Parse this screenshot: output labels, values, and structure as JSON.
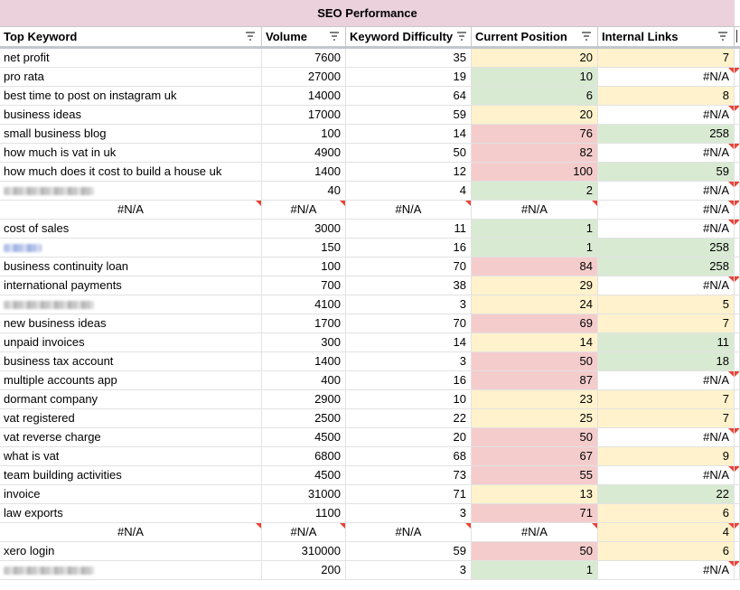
{
  "title": "SEO Performance",
  "headers": [
    "Top Keyword",
    "Volume",
    "Keyword Difficulty",
    "Current Position",
    "Internal Links"
  ],
  "status_colors": {
    "red": "#f4cccc",
    "yellow": "#fff2cc",
    "green": "#d9ead3"
  },
  "rows": [
    {
      "keyword": "net profit",
      "volume": "7600",
      "difficulty": "35",
      "position": "20",
      "links": "7",
      "pos_color": "yellow",
      "links_color": "yellow"
    },
    {
      "keyword": "pro rata",
      "volume": "27000",
      "difficulty": "19",
      "position": "10",
      "links": "#N/A",
      "pos_color": "green",
      "links_color": "white"
    },
    {
      "keyword": "best time to post on instagram uk",
      "volume": "14000",
      "difficulty": "64",
      "position": "6",
      "links": "8",
      "pos_color": "green",
      "links_color": "yellow"
    },
    {
      "keyword": "business ideas",
      "volume": "17000",
      "difficulty": "59",
      "position": "20",
      "links": "#N/A",
      "pos_color": "yellow",
      "links_color": "white"
    },
    {
      "keyword": "small business blog",
      "volume": "100",
      "difficulty": "14",
      "position": "76",
      "links": "258",
      "pos_color": "red",
      "links_color": "green"
    },
    {
      "keyword": "how much is vat in uk",
      "volume": "4900",
      "difficulty": "50",
      "position": "82",
      "links": "#N/A",
      "pos_color": "red",
      "links_color": "white"
    },
    {
      "keyword": "how much does it cost to build a house uk",
      "volume": "1400",
      "difficulty": "12",
      "position": "100",
      "links": "59",
      "pos_color": "red",
      "links_color": "green"
    },
    {
      "keyword": "",
      "redacted": "gray",
      "volume": "40",
      "difficulty": "4",
      "position": "2",
      "links": "#N/A",
      "pos_color": "green",
      "links_color": "white"
    },
    {
      "keyword": "#N/A",
      "na_row": true,
      "volume": "#N/A",
      "difficulty": "#N/A",
      "position": "#N/A",
      "links": "#N/A",
      "pos_color": "white",
      "links_color": "white"
    },
    {
      "keyword": "cost of sales",
      "volume": "3000",
      "difficulty": "11",
      "position": "1",
      "links": "#N/A",
      "pos_color": "green",
      "links_color": "white"
    },
    {
      "keyword": "",
      "redacted": "blue",
      "volume": "150",
      "difficulty": "16",
      "position": "1",
      "links": "258",
      "pos_color": "green",
      "links_color": "green"
    },
    {
      "keyword": "business continuity loan",
      "volume": "100",
      "difficulty": "70",
      "position": "84",
      "links": "258",
      "pos_color": "red",
      "links_color": "green"
    },
    {
      "keyword": "international payments",
      "volume": "700",
      "difficulty": "38",
      "position": "29",
      "links": "#N/A",
      "pos_color": "yellow",
      "links_color": "white"
    },
    {
      "keyword": "",
      "redacted": "gray",
      "volume": "4100",
      "difficulty": "3",
      "position": "24",
      "links": "5",
      "pos_color": "yellow",
      "links_color": "yellow"
    },
    {
      "keyword": "new business ideas",
      "volume": "1700",
      "difficulty": "70",
      "position": "69",
      "links": "7",
      "pos_color": "red",
      "links_color": "yellow"
    },
    {
      "keyword": "unpaid invoices",
      "volume": "300",
      "difficulty": "14",
      "position": "14",
      "links": "11",
      "pos_color": "yellow",
      "links_color": "green"
    },
    {
      "keyword": "business tax account",
      "volume": "1400",
      "difficulty": "3",
      "position": "50",
      "links": "18",
      "pos_color": "red",
      "links_color": "green"
    },
    {
      "keyword": "multiple accounts app",
      "volume": "400",
      "difficulty": "16",
      "position": "87",
      "links": "#N/A",
      "pos_color": "red",
      "links_color": "white"
    },
    {
      "keyword": "dormant company",
      "volume": "2900",
      "difficulty": "10",
      "position": "23",
      "links": "7",
      "pos_color": "yellow",
      "links_color": "yellow"
    },
    {
      "keyword": "vat registered",
      "volume": "2500",
      "difficulty": "22",
      "position": "25",
      "links": "7",
      "pos_color": "yellow",
      "links_color": "yellow"
    },
    {
      "keyword": "vat reverse charge",
      "volume": "4500",
      "difficulty": "20",
      "position": "50",
      "links": "#N/A",
      "pos_color": "red",
      "links_color": "white"
    },
    {
      "keyword": "what is vat",
      "volume": "6800",
      "difficulty": "68",
      "position": "67",
      "links": "9",
      "pos_color": "red",
      "links_color": "yellow"
    },
    {
      "keyword": "team building activities",
      "volume": "4500",
      "difficulty": "73",
      "position": "55",
      "links": "#N/A",
      "pos_color": "red",
      "links_color": "white"
    },
    {
      "keyword": "invoice",
      "volume": "31000",
      "difficulty": "71",
      "position": "13",
      "links": "22",
      "pos_color": "yellow",
      "links_color": "green"
    },
    {
      "keyword": "law exports",
      "volume": "1100",
      "difficulty": "3",
      "position": "71",
      "links": "6",
      "pos_color": "red",
      "links_color": "yellow"
    },
    {
      "keyword": "#N/A",
      "na_row": true,
      "volume": "#N/A",
      "difficulty": "#N/A",
      "position": "#N/A",
      "links": "4",
      "pos_color": "white",
      "links_color": "yellow"
    },
    {
      "keyword": "xero login",
      "volume": "310000",
      "difficulty": "59",
      "position": "50",
      "links": "6",
      "pos_color": "red",
      "links_color": "yellow"
    },
    {
      "keyword": "",
      "redacted": "gray",
      "volume": "200",
      "difficulty": "3",
      "position": "1",
      "links": "#N/A",
      "pos_color": "green",
      "links_color": "white"
    }
  ]
}
